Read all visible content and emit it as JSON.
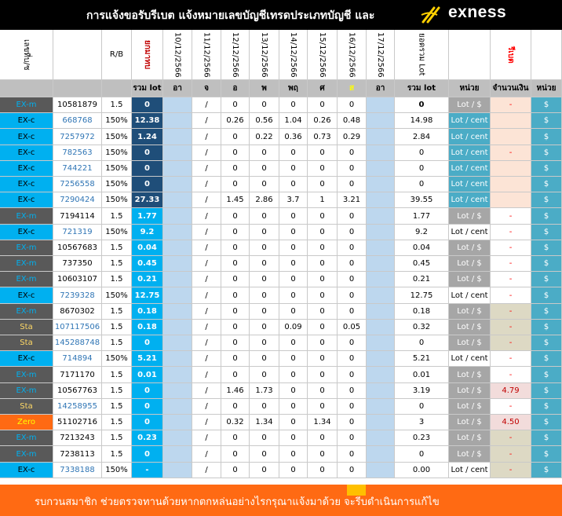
{
  "title": "การแจ้งขอรับรีเบต  แจ้งหมายเลขบัญชีเทรดประเภทบัญชี และ",
  "logo": {
    "text": "exness",
    "icon": "exness-x-mark"
  },
  "header_top": {
    "account": "เลขที่บ/ช",
    "rb": "R/B",
    "carried": "ยกมาทบ",
    "dates": [
      "10/12/2566",
      "11/12/2566",
      "12/12/2566",
      "13/12/2566",
      "14/12/2566",
      "15/12/2566",
      "16/12/2566",
      "17/12/2566"
    ],
    "total_lot": "ยอดรวม Lot",
    "rebate": "รีเบต"
  },
  "header_sub": {
    "carried_sub": "รวม lot",
    "days": [
      "อา",
      "จ",
      "อ",
      "พ",
      "พฤ",
      "ศ",
      "ส",
      "อา"
    ],
    "total_sub": "รวม lot",
    "unit": "หน่วย",
    "amount": "จำนวนเงิน",
    "unit2": "หน่วย"
  },
  "colors": {
    "exm": "#595959",
    "exc": "#00b0f0",
    "sta": "#595959",
    "zero": "#ff6a13",
    "carried_dark": "#1f4e79",
    "carried_light": "#00b0f0",
    "sun": "#bdd7ee",
    "unit_cent": "#4bacc6",
    "unit_dollar": "#a6a6a6",
    "peach": "#fce4d6",
    "beige": "#ddd9c4",
    "dollar_col": "#4bacc6"
  },
  "rows": [
    {
      "type": "EX-m",
      "acct": "10581879",
      "rb": "1.5",
      "lot": "0",
      "d": [
        "",
        "/",
        "0",
        "0",
        "0",
        "0",
        "0",
        ""
      ],
      "total": "0",
      "unit": "Lot / $",
      "amount": "-",
      "cur": "$"
    },
    {
      "type": "EX-c",
      "acct": "668768",
      "rb": "150%",
      "lot": "12.38",
      "d": [
        "",
        "/",
        "0.26",
        "0.56",
        "1.04",
        "0.26",
        "0.48",
        ""
      ],
      "total": "14.98",
      "unit": "Lot / cent",
      "amount": "",
      "cur": "$"
    },
    {
      "type": "EX-c",
      "acct": "7257972",
      "rb": "150%",
      "lot": "1.24",
      "d": [
        "",
        "/",
        "0",
        "0.22",
        "0.36",
        "0.73",
        "0.29",
        ""
      ],
      "total": "2.84",
      "unit": "Lot / cent",
      "amount": "",
      "cur": "$"
    },
    {
      "type": "EX-c",
      "acct": "782563",
      "rb": "150%",
      "lot": "0",
      "d": [
        "",
        "/",
        "0",
        "0",
        "0",
        "0",
        "0",
        ""
      ],
      "total": "0",
      "unit": "Lot / cent",
      "amount": "-",
      "cur": "$"
    },
    {
      "type": "EX-c",
      "acct": "744221",
      "rb": "150%",
      "lot": "0",
      "d": [
        "",
        "/",
        "0",
        "0",
        "0",
        "0",
        "0",
        ""
      ],
      "total": "0",
      "unit": "Lot / cent",
      "amount": "",
      "cur": "$"
    },
    {
      "type": "EX-c",
      "acct": "7256558",
      "rb": "150%",
      "lot": "0",
      "d": [
        "",
        "/",
        "0",
        "0",
        "0",
        "0",
        "0",
        ""
      ],
      "total": "0",
      "unit": "Lot / cent",
      "amount": "",
      "cur": "$"
    },
    {
      "type": "EX-c",
      "acct": "7290424",
      "rb": "150%",
      "lot": "27.33",
      "d": [
        "",
        "/",
        "1.45",
        "2.86",
        "3.7",
        "1",
        "3.21",
        ""
      ],
      "total": "39.55",
      "unit": "Lot / cent",
      "amount": "",
      "cur": "$"
    },
    {
      "type": "EX-m",
      "acct": "7194114",
      "rb": "1.5",
      "lot": "1.77",
      "d": [
        "",
        "/",
        "0",
        "0",
        "0",
        "0",
        "0",
        ""
      ],
      "total": "1.77",
      "unit": "Lot / $",
      "amount": "-",
      "cur": "$"
    },
    {
      "type": "EX-c",
      "acct": "721319",
      "rb": "150%",
      "lot": "9.2",
      "d": [
        "",
        "/",
        "0",
        "0",
        "0",
        "0",
        "0",
        ""
      ],
      "total": "9.2",
      "unit": "Lot / cent",
      "amount": "-",
      "cur": "$"
    },
    {
      "type": "EX-m",
      "acct": "10567683",
      "rb": "1.5",
      "lot": "0.04",
      "d": [
        "",
        "/",
        "0",
        "0",
        "0",
        "0",
        "0",
        ""
      ],
      "total": "0.04",
      "unit": "Lot / $",
      "amount": "-",
      "cur": "$"
    },
    {
      "type": "EX-m",
      "acct": "737350",
      "rb": "1.5",
      "lot": "0.45",
      "d": [
        "",
        "/",
        "0",
        "0",
        "0",
        "0",
        "0",
        ""
      ],
      "total": "0.45",
      "unit": "Lot / $",
      "amount": "-",
      "cur": "$"
    },
    {
      "type": "EX-m",
      "acct": "10603107",
      "rb": "1.5",
      "lot": "0.21",
      "d": [
        "",
        "/",
        "0",
        "0",
        "0",
        "0",
        "0",
        ""
      ],
      "total": "0.21",
      "unit": "Lot / $",
      "amount": "-",
      "cur": "$"
    },
    {
      "type": "EX-c",
      "acct": "7239328",
      "rb": "150%",
      "lot": "12.75",
      "d": [
        "",
        "/",
        "0",
        "0",
        "0",
        "0",
        "0",
        ""
      ],
      "total": "12.75",
      "unit": "Lot / cent",
      "amount": "-",
      "cur": "$"
    },
    {
      "type": "EX-m",
      "acct": "8670302",
      "rb": "1.5",
      "lot": "0.18",
      "d": [
        "",
        "/",
        "0",
        "0",
        "0",
        "0",
        "0",
        ""
      ],
      "total": "0.18",
      "unit": "Lot / $",
      "amount": "-",
      "cur": "$"
    },
    {
      "type": "Sta",
      "acct": "107117506",
      "rb": "1.5",
      "lot": "0.18",
      "d": [
        "",
        "/",
        "0",
        "0",
        "0.09",
        "0",
        "0.05",
        ""
      ],
      "total": "0.32",
      "unit": "Lot / $",
      "amount": "-",
      "cur": "$"
    },
    {
      "type": "Sta",
      "acct": "145288748",
      "rb": "1.5",
      "lot": "0",
      "d": [
        "",
        "/",
        "0",
        "0",
        "0",
        "0",
        "0",
        ""
      ],
      "total": "0",
      "unit": "Lot / $",
      "amount": "-",
      "cur": "$"
    },
    {
      "type": "EX-c",
      "acct": "714894",
      "rb": "150%",
      "lot": "5.21",
      "d": [
        "",
        "/",
        "0",
        "0",
        "0",
        "0",
        "0",
        ""
      ],
      "total": "5.21",
      "unit": "Lot / cent",
      "amount": "-",
      "cur": "$"
    },
    {
      "type": "EX-m",
      "acct": "7171170",
      "rb": "1.5",
      "lot": "0.01",
      "d": [
        "",
        "/",
        "0",
        "0",
        "0",
        "0",
        "0",
        ""
      ],
      "total": "0.01",
      "unit": "Lot / $",
      "amount": "-",
      "cur": "$"
    },
    {
      "type": "EX-m",
      "acct": "10567763",
      "rb": "1.5",
      "lot": "0",
      "d": [
        "",
        "/",
        "1.46",
        "1.73",
        "0",
        "0",
        "0",
        ""
      ],
      "total": "3.19",
      "unit": "Lot / $",
      "amount": "4.79",
      "cur": "$"
    },
    {
      "type": "Sta",
      "acct": "14258955",
      "rb": "1.5",
      "lot": "0",
      "d": [
        "",
        "/",
        "0",
        "0",
        "0",
        "0",
        "0",
        ""
      ],
      "total": "0",
      "unit": "Lot / $",
      "amount": "-",
      "cur": "$"
    },
    {
      "type": "Zero",
      "acct": "51102716",
      "rb": "1.5",
      "lot": "0",
      "d": [
        "",
        "/",
        "0.32",
        "1.34",
        "0",
        "1.34",
        "0",
        ""
      ],
      "total": "3",
      "unit": "Lot / $",
      "amount": "4.50",
      "cur": "$"
    },
    {
      "type": "EX-m",
      "acct": "7213243",
      "rb": "1.5",
      "lot": "0.23",
      "d": [
        "",
        "/",
        "0",
        "0",
        "0",
        "0",
        "0",
        ""
      ],
      "total": "0.23",
      "unit": "Lot / $",
      "amount": "-",
      "cur": "$"
    },
    {
      "type": "EX-m",
      "acct": "7238113",
      "rb": "1.5",
      "lot": "0",
      "d": [
        "",
        "/",
        "0",
        "0",
        "0",
        "0",
        "0",
        ""
      ],
      "total": "0",
      "unit": "Lot / $",
      "amount": "-",
      "cur": "$"
    },
    {
      "type": "EX-c",
      "acct": "7338188",
      "rb": "150%",
      "lot": "-",
      "d": [
        "",
        "/",
        "0",
        "0",
        "0",
        "0",
        "0",
        ""
      ],
      "total": "0.00",
      "unit": "Lot / cent",
      "amount": "-",
      "cur": "$"
    }
  ],
  "footer": "รบกวนสมาชิก ช่วยตรวจทานด้วยหากตกหล่นอย่างไรกรุณาแจ้งมาด้วย จะรีบดำเนินการแก้ไข"
}
